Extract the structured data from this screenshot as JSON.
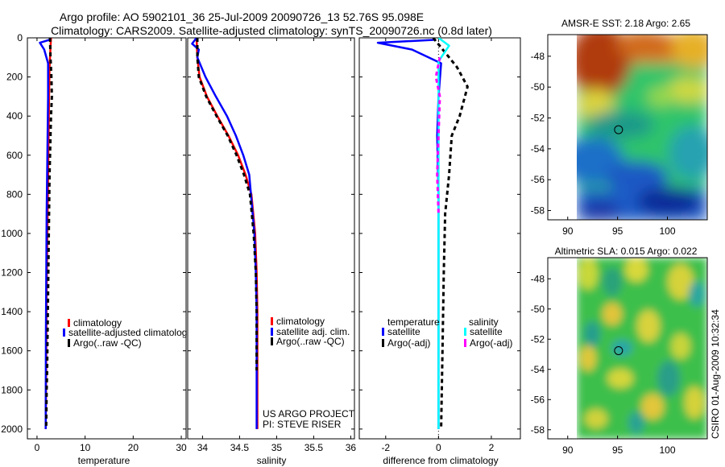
{
  "title": {
    "line1": "Argo profile: AO 5902101_36 25-Jul-2009 20090726_13 52.76S 95.098E",
    "line2": "Climatology: CARS2009. Satellite-adjusted climatology: synTS_20090726.nc (0.8d later)"
  },
  "colors": {
    "red": "#ff0000",
    "blue": "#0000ff",
    "black": "#000000",
    "cyan": "#00ffff",
    "magenta": "#ff00ff",
    "map_background": "#22b85a"
  },
  "chart_data": [
    {
      "type": "line",
      "id": "temperature",
      "xlabel": "temperature",
      "xlim": [
        -2,
        31
      ],
      "ylim": [
        0,
        2050
      ],
      "y_reversed": true,
      "xticks": [
        0,
        10,
        20,
        30
      ],
      "xtick_labels": [
        "0",
        "10",
        "20",
        "30"
      ],
      "yticks": [
        0,
        200,
        400,
        600,
        800,
        1000,
        1200,
        1400,
        1600,
        1800,
        2000
      ],
      "ytick_labels": [
        "0",
        "200",
        "400",
        "600",
        "800",
        "1000",
        "1200",
        "1400",
        "1600",
        "1800",
        "2000"
      ],
      "legend": {
        "position": "lower-right",
        "entries": [
          "climatology",
          "satellite-adjusted climatology",
          "Argo(..raw -QC)"
        ]
      },
      "series": [
        {
          "name": "climatology",
          "color": "red",
          "style": "solid",
          "x": [
            2.9,
            2.8,
            2.6,
            2.5,
            2.4,
            2.3,
            2.2,
            2.1,
            2.0,
            1.95,
            1.9,
            1.85,
            1.8
          ],
          "y": [
            0,
            50,
            150,
            300,
            500,
            700,
            900,
            1100,
            1300,
            1500,
            1700,
            1900,
            2000
          ]
        },
        {
          "name": "satellite-adjusted climatology",
          "color": "blue",
          "style": "solid",
          "x": [
            2.8,
            2.6,
            0.6,
            1.5,
            2.3,
            2.3,
            2.2,
            2.1,
            2.0,
            1.95,
            1.9,
            1.85,
            1.8
          ],
          "y": [
            0,
            10,
            25,
            60,
            130,
            300,
            500,
            700,
            900,
            1100,
            1300,
            1500,
            2000
          ]
        },
        {
          "name": "Argo(..raw -QC)",
          "color": "black",
          "style": "dashed",
          "x": [
            2.7,
            2.8,
            3.0,
            3.1,
            2.9,
            2.8,
            2.6,
            2.5,
            2.4,
            2.3,
            2.2,
            2.1,
            2.0,
            1.95,
            1.9
          ],
          "y": [
            0,
            100,
            200,
            300,
            400,
            500,
            700,
            900,
            1100,
            1300,
            1500,
            1700,
            1800,
            1900,
            2000
          ]
        }
      ]
    },
    {
      "type": "line",
      "id": "salinity",
      "xlabel": "salinity",
      "xlim": [
        33.8,
        36.05
      ],
      "ylim": [
        0,
        2050
      ],
      "y_reversed": true,
      "xticks": [
        34,
        34.5,
        35,
        35.5,
        36
      ],
      "xtick_labels": [
        "34",
        "34.5",
        "35",
        "35.5",
        "36"
      ],
      "legend": {
        "position": "lower-right",
        "entries": [
          "climatology",
          "satellite adj. clim.",
          "Argo(..raw -QC)"
        ]
      },
      "annotation": [
        "US ARGO PROJECT",
        "PI: STEVE RISER"
      ],
      "series": [
        {
          "name": "climatology",
          "color": "red",
          "style": "solid",
          "x": [
            33.92,
            33.93,
            33.96,
            34.06,
            34.2,
            34.35,
            34.48,
            34.58,
            34.66,
            34.71,
            34.73,
            34.74,
            34.74,
            34.74
          ],
          "y": [
            0,
            100,
            200,
            300,
            400,
            500,
            600,
            700,
            800,
            1000,
            1200,
            1400,
            1700,
            2000
          ]
        },
        {
          "name": "satellite adj. clim.",
          "color": "blue",
          "style": "solid",
          "x": [
            33.92,
            33.86,
            33.95,
            33.93,
            34.04,
            34.18,
            34.33,
            34.45,
            34.55,
            34.63,
            34.7,
            34.72,
            34.73,
            34.73,
            34.73
          ],
          "y": [
            0,
            30,
            60,
            100,
            200,
            300,
            400,
            500,
            600,
            700,
            1000,
            1200,
            1400,
            1700,
            2000
          ]
        },
        {
          "name": "Argo(..raw -QC)",
          "color": "black",
          "style": "dashed",
          "x": [
            33.93,
            33.93,
            33.95,
            34.05,
            34.19,
            34.34,
            34.46,
            34.56,
            34.64,
            34.69,
            34.72,
            34.73,
            34.73
          ],
          "y": [
            0,
            100,
            200,
            300,
            400,
            500,
            600,
            700,
            800,
            1000,
            1200,
            1400,
            1700
          ]
        }
      ]
    },
    {
      "type": "line",
      "id": "difference",
      "xlabel": "difference from climatology",
      "xlim": [
        -3,
        3.1
      ],
      "ylim": [
        0,
        2050
      ],
      "y_reversed": true,
      "xticks": [
        -2,
        0,
        2
      ],
      "xtick_labels": [
        "-2",
        "0",
        "2"
      ],
      "legend": {
        "position": "lower",
        "headers": [
          "temperature",
          "salinity"
        ],
        "entries": [
          "satellite",
          "Argo(-adj)",
          "satellite",
          "Argo(-adj)"
        ]
      },
      "series": [
        {
          "name": "temperature satellite",
          "color": "blue",
          "style": "solid",
          "x": [
            -0.1,
            -2.3,
            -1.0,
            0.1,
            0.0,
            -0.05,
            0.0,
            0.0,
            0.0,
            0.0
          ],
          "y": [
            10,
            25,
            60,
            130,
            300,
            500,
            800,
            1200,
            1600,
            2000
          ]
        },
        {
          "name": "temperature Argo(-adj)",
          "color": "black",
          "style": "dashed",
          "x": [
            -0.2,
            0.7,
            1.1,
            0.8,
            0.5,
            0.4,
            0.25,
            0.2,
            0.15,
            0.1
          ],
          "y": [
            0,
            150,
            250,
            400,
            500,
            700,
            900,
            1200,
            1600,
            2000
          ]
        },
        {
          "name": "salinity satellite",
          "color": "cyan",
          "style": "solid",
          "x": [
            0.0,
            0.4,
            0.0,
            0.0,
            0.0,
            0.0
          ],
          "y": [
            0,
            40,
            120,
            300,
            800,
            2000
          ]
        },
        {
          "name": "salinity Argo(-adj)",
          "color": "magenta",
          "style": "dashed",
          "x": [
            0.05,
            -0.1,
            0.05,
            -0.05,
            0.0
          ],
          "y": [
            100,
            200,
            300,
            700,
            900
          ]
        }
      ]
    },
    {
      "type": "heatmap",
      "id": "sst-map",
      "title": "AMSR-E SST: 2.18 Argo: 2.65",
      "xlim": [
        88,
        104
      ],
      "ylim": [
        -58.6,
        -46.6
      ],
      "xticks": [
        90,
        95,
        100
      ],
      "xtick_labels": [
        "90",
        "95",
        "100"
      ],
      "yticks": [
        -48,
        -50,
        -52,
        -54,
        -56,
        -58
      ],
      "ytick_labels": [
        "-48",
        "-50",
        "-52",
        "-54",
        "-56",
        "-58"
      ],
      "argo_position": {
        "lon": 95.098,
        "lat": -52.76
      }
    },
    {
      "type": "heatmap",
      "id": "sla-map",
      "title": "Altimetric SLA: 0.015 Argo: 0.022",
      "xlim": [
        88,
        104
      ],
      "ylim": [
        -58.6,
        -46.6
      ],
      "xticks": [
        90,
        95,
        100
      ],
      "xtick_labels": [
        "90",
        "95",
        "100"
      ],
      "yticks": [
        -48,
        -50,
        -52,
        -54,
        -56,
        -58
      ],
      "ytick_labels": [
        "-48",
        "-50",
        "-52",
        "-54",
        "-56",
        "-58"
      ],
      "argo_position": {
        "lon": 95.098,
        "lat": -52.76
      }
    }
  ],
  "footer": "CSIRO 01-Aug-2009 10:32:34"
}
